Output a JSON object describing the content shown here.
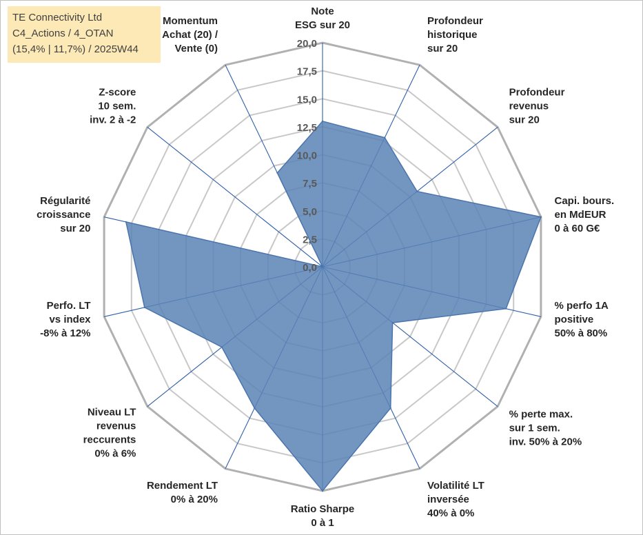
{
  "title_box": {
    "line1": "TE Connectivity Ltd",
    "line2": "C4_Actions / 4_OTAN",
    "line3": "(15,4% | 11,7%) / 2025W44"
  },
  "colors": {
    "fill": "#5b84b6",
    "edge": "#4a74ad",
    "axis_line": "#2e5fa8",
    "grid": "#c8c8c8",
    "outer_grid": "#b0b0b0",
    "label": "#262626",
    "tick": "#595959"
  },
  "chart_data": {
    "type": "radar",
    "range": [
      0,
      20
    ],
    "ticks": [
      "0,0",
      "2,5",
      "5,0",
      "7,5",
      "10,0",
      "12,5",
      "15,0",
      "17,5",
      "20,0"
    ],
    "axes": [
      {
        "lines": [
          "Note",
          "ESG sur 20"
        ]
      },
      {
        "lines": [
          "Profondeur",
          "historique",
          "sur 20"
        ]
      },
      {
        "lines": [
          "Profondeur",
          "revenus",
          "sur 20"
        ]
      },
      {
        "lines": [
          "Capi. bours.",
          "en MdEUR",
          "0 à 60 G€"
        ]
      },
      {
        "lines": [
          "% perfo 1A",
          "positive",
          "50% à 80%"
        ]
      },
      {
        "lines": [
          "% perte max.",
          "sur 1 sem.",
          "inv. 50% à 20%"
        ]
      },
      {
        "lines": [
          "Volatilité LT",
          "inversée",
          "40% à 0%"
        ]
      },
      {
        "lines": [
          "Ratio Sharpe",
          "0 à 1"
        ]
      },
      {
        "lines": [
          "Rendement LT",
          "0% à 20%"
        ]
      },
      {
        "lines": [
          "Niveau LT",
          "revenus",
          "reccurents",
          "0% à 6%"
        ]
      },
      {
        "lines": [
          "Perfo. LT",
          "vs index",
          "-8% à 12%"
        ]
      },
      {
        "lines": [
          "Régularité",
          "croissance",
          "sur 20"
        ]
      },
      {
        "lines": [
          "Z-score",
          "10 sem.",
          "inv. 2 à -2"
        ]
      },
      {
        "lines": [
          "Momentum",
          "Achat (20) /",
          "Vente (0)"
        ]
      }
    ],
    "values": [
      13.0,
      12.8,
      10.8,
      20.0,
      16.8,
      8.0,
      14.0,
      20.0,
      14.0,
      11.5,
      16.3,
      18.0,
      0.0,
      9.3
    ]
  }
}
